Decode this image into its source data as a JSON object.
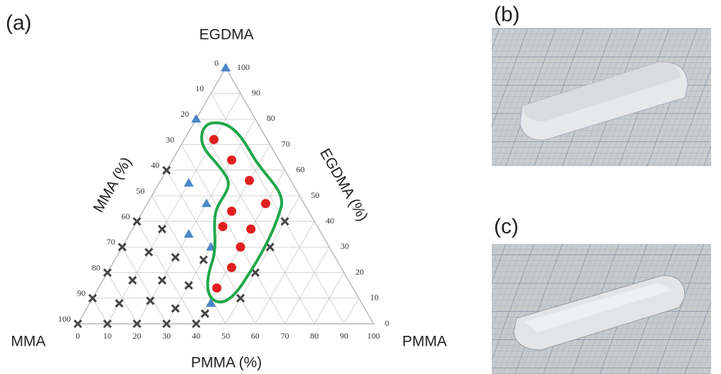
{
  "chart_data": {
    "type": "ternary",
    "panel_labels": [
      "(a)",
      "(b)",
      "(c)"
    ],
    "vertices": {
      "top": "EGDMA",
      "left": "MMA",
      "right": "PMMA"
    },
    "bottom_axis": {
      "label": "PMMA (%)",
      "ticks": [
        0,
        10,
        20,
        30,
        40,
        50,
        60,
        70,
        80,
        90,
        100
      ]
    },
    "right_axis": {
      "label": "EGDMA (%)",
      "ticks": [
        0,
        10,
        20,
        30,
        40,
        50,
        60,
        70,
        80,
        90,
        100
      ]
    },
    "left_axis": {
      "label": "MMA (%)",
      "ticks": [
        0,
        10,
        20,
        30,
        40,
        50,
        60,
        70,
        80,
        90,
        100
      ]
    },
    "grid": true,
    "series": [
      {
        "marker": "triangle",
        "color": "#4a86c8",
        "pmma": [
          0,
          0,
          10,
          20,
          20,
          30,
          41
        ],
        "egdma": [
          100,
          80,
          55,
          47,
          35,
          30,
          8
        ]
      },
      {
        "marker": "circle",
        "color": "#e02020",
        "pmma": [
          10,
          20,
          30,
          40,
          30,
          30,
          40,
          40,
          41,
          40
        ],
        "egdma": [
          72,
          64,
          56,
          47,
          44,
          38,
          37,
          30,
          22,
          14
        ]
      },
      {
        "marker": "cross",
        "color": "#444444",
        "pmma": [
          0,
          10,
          20,
          30,
          40,
          0,
          10,
          20,
          30,
          41,
          0,
          10,
          20,
          30,
          50,
          50,
          50,
          50,
          0,
          10,
          20,
          0,
          10,
          0,
          30
        ],
        "egdma": [
          0,
          0,
          0,
          0,
          0,
          10,
          8,
          9,
          6,
          4,
          20,
          17,
          17,
          15,
          10,
          20,
          30,
          40,
          30,
          28,
          26,
          40,
          37,
          60,
          25
        ]
      }
    ]
  }
}
